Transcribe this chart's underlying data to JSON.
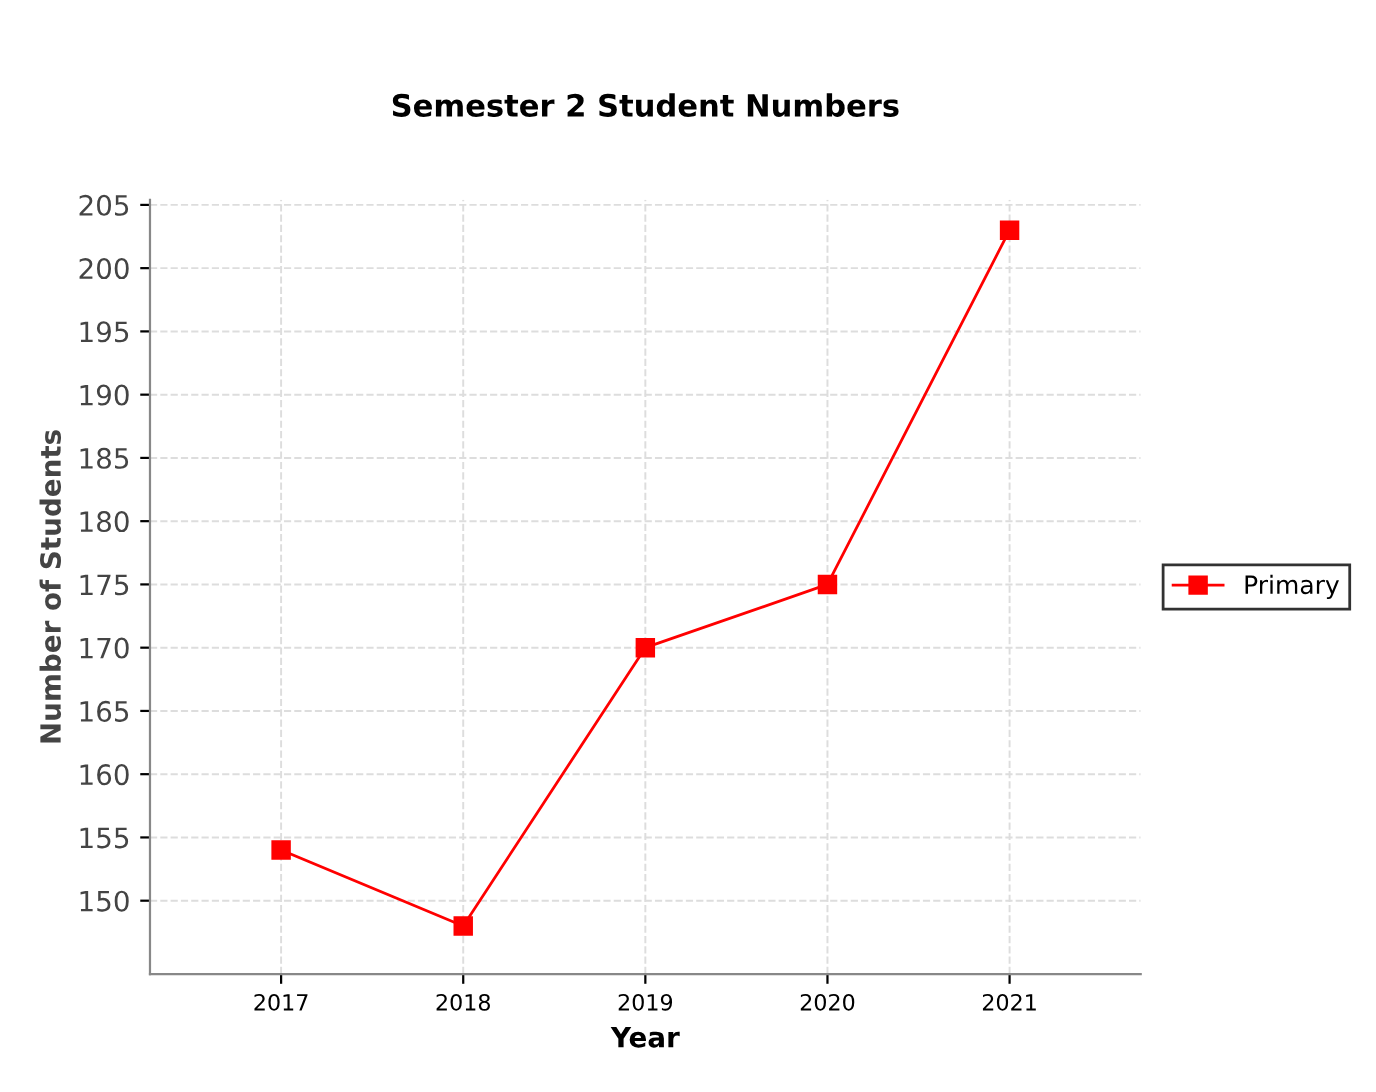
{
  "chart_data": {
    "type": "line",
    "title": "Semester 2 Student Numbers",
    "xlabel": "Year",
    "ylabel": "Number of Students",
    "categories": [
      "2017",
      "2018",
      "2019",
      "2020",
      "2021"
    ],
    "series": [
      {
        "name": "Primary",
        "color": "#ff0000",
        "values": [
          154,
          148,
          170,
          175,
          203
        ]
      }
    ],
    "ylim": [
      144.2,
      205.4
    ],
    "yticks": [
      150,
      155,
      160,
      165,
      170,
      175,
      180,
      185,
      190,
      195,
      200,
      205
    ],
    "grid": true,
    "legend": "right",
    "marker": "square",
    "line_style": "solid"
  }
}
